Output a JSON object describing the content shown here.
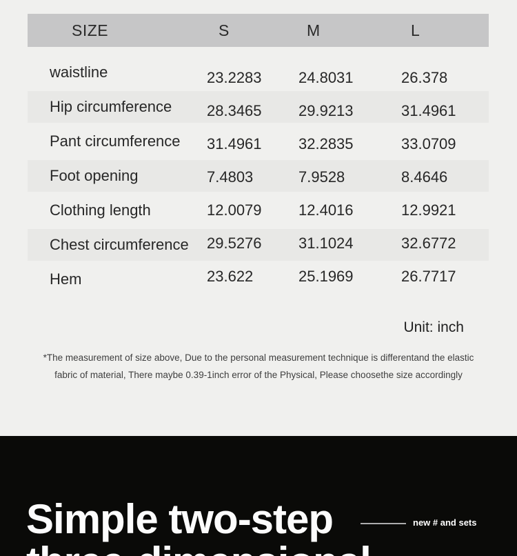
{
  "table": {
    "header": {
      "size_label": "SIZE",
      "columns": [
        "S",
        "M",
        "L"
      ]
    },
    "rows": [
      {
        "label": "waistline",
        "values": [
          "23.2283",
          "24.8031",
          "26.378"
        ]
      },
      {
        "label": "Hip circumference",
        "values": [
          "28.3465",
          "29.9213",
          "31.4961"
        ]
      },
      {
        "label": "Pant circumference",
        "values": [
          "31.4961",
          "32.2835",
          "33.0709"
        ]
      },
      {
        "label": "Foot opening",
        "values": [
          "7.4803",
          "7.9528",
          "8.4646"
        ]
      },
      {
        "label": "Clothing length",
        "values": [
          "12.0079",
          "12.4016",
          "12.9921"
        ]
      },
      {
        "label": "Chest circumference",
        "values": [
          "29.5276",
          "31.1024",
          "32.6772"
        ]
      },
      {
        "label": "Hem",
        "values": [
          "23.622",
          "25.1969",
          "26.7717"
        ]
      }
    ]
  },
  "unit_note": "Unit: inch",
  "disclaimer": {
    "line1": "*The measurement of size above, Due to the personal measurement technique is differentand the elastic",
    "line2": "fabric of material, There maybe 0.39-1inch error of the Physical, Please choosethe size accordingly"
  },
  "hero": {
    "heading_line1": "Simple two-step",
    "heading_line2": "three-dimensional",
    "tag": "new # and sets"
  },
  "colors": {
    "page_background": "#f0f0ee",
    "header_background": "#c6c6c7",
    "stripe_background": "#e8e8e6",
    "table_text": "#272727",
    "hero_background": "#0a0a08",
    "hero_text": "#fcfcfc",
    "connector_line": "#adadad"
  }
}
